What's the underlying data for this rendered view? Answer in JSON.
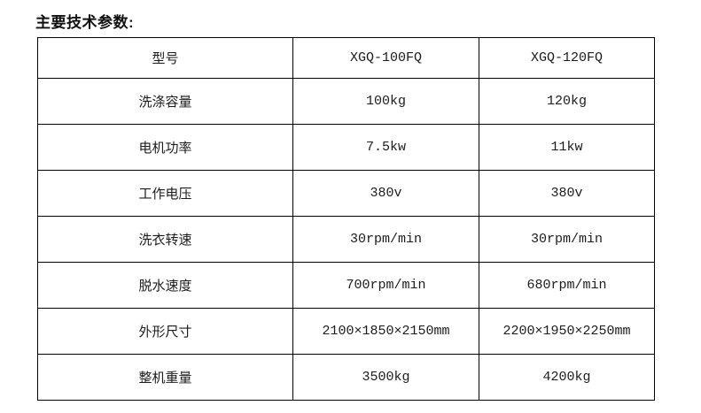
{
  "page": {
    "title": "主要技术参数:",
    "background_color": "#ffffff",
    "text_color": "#1a1a1a",
    "border_color": "#000000"
  },
  "table": {
    "rows": [
      {
        "label": "型号",
        "v1": "XGQ-100FQ",
        "v2": "XGQ-120FQ"
      },
      {
        "label": "洗涤容量",
        "v1": "100kg",
        "v2": "120kg"
      },
      {
        "label": "电机功率",
        "v1": "7.5kw",
        "v2": "11kw"
      },
      {
        "label": "工作电压",
        "v1": "380v",
        "v2": "380v"
      },
      {
        "label": "洗衣转速",
        "v1": "30rpm/min",
        "v2": "30rpm/min"
      },
      {
        "label": "脱水速度",
        "v1": "700rpm/min",
        "v2": "680rpm/min"
      },
      {
        "label": "外形尺寸",
        "v1": "2100×1850×2150mm",
        "v2": "2200×1950×2250mm"
      },
      {
        "label": "整机重量",
        "v1": "3500kg",
        "v2": "4200kg"
      }
    ]
  }
}
